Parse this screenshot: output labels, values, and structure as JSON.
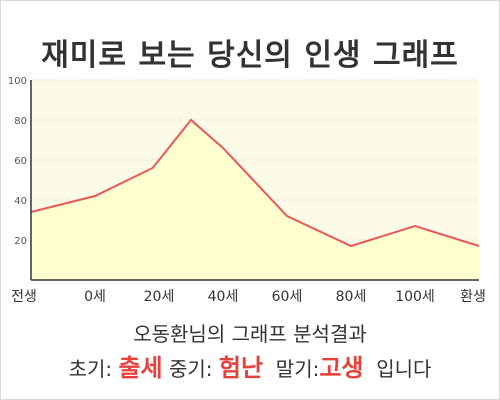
{
  "title": "재미로 보는 당신의 인생 그래프",
  "chart_data": {
    "type": "area",
    "title": "재미로 보는 당신의 인생 그래프",
    "categories": [
      "전생",
      "0세",
      "20세",
      "40세",
      "60세",
      "80세",
      "100세",
      "환생"
    ],
    "y_ticks": [
      20,
      40,
      60,
      80,
      100
    ],
    "ylim": [
      0,
      100
    ],
    "grid": true,
    "points": [
      {
        "x": 0,
        "y": 34
      },
      {
        "x": 1,
        "y": 42
      },
      {
        "x": 1.9,
        "y": 56
      },
      {
        "x": 2.5,
        "y": 80
      },
      {
        "x": 3,
        "y": 66
      },
      {
        "x": 4,
        "y": 32
      },
      {
        "x": 5,
        "y": 17
      },
      {
        "x": 6,
        "y": 27
      },
      {
        "x": 7,
        "y": 17
      }
    ],
    "colors": {
      "line": "#e8585a",
      "fill": "#ffffcc",
      "plot_bg": "#fbfbe8",
      "grid": "#e6e6d0"
    }
  },
  "summary": {
    "line1": "오동환님의 그래프 분석결과",
    "early_label": "초기:",
    "early_value": "출세",
    "middle_label": "중기:",
    "middle_value": "험난",
    "late_label": "말기:",
    "late_value": "고생",
    "ending": "입니다"
  }
}
